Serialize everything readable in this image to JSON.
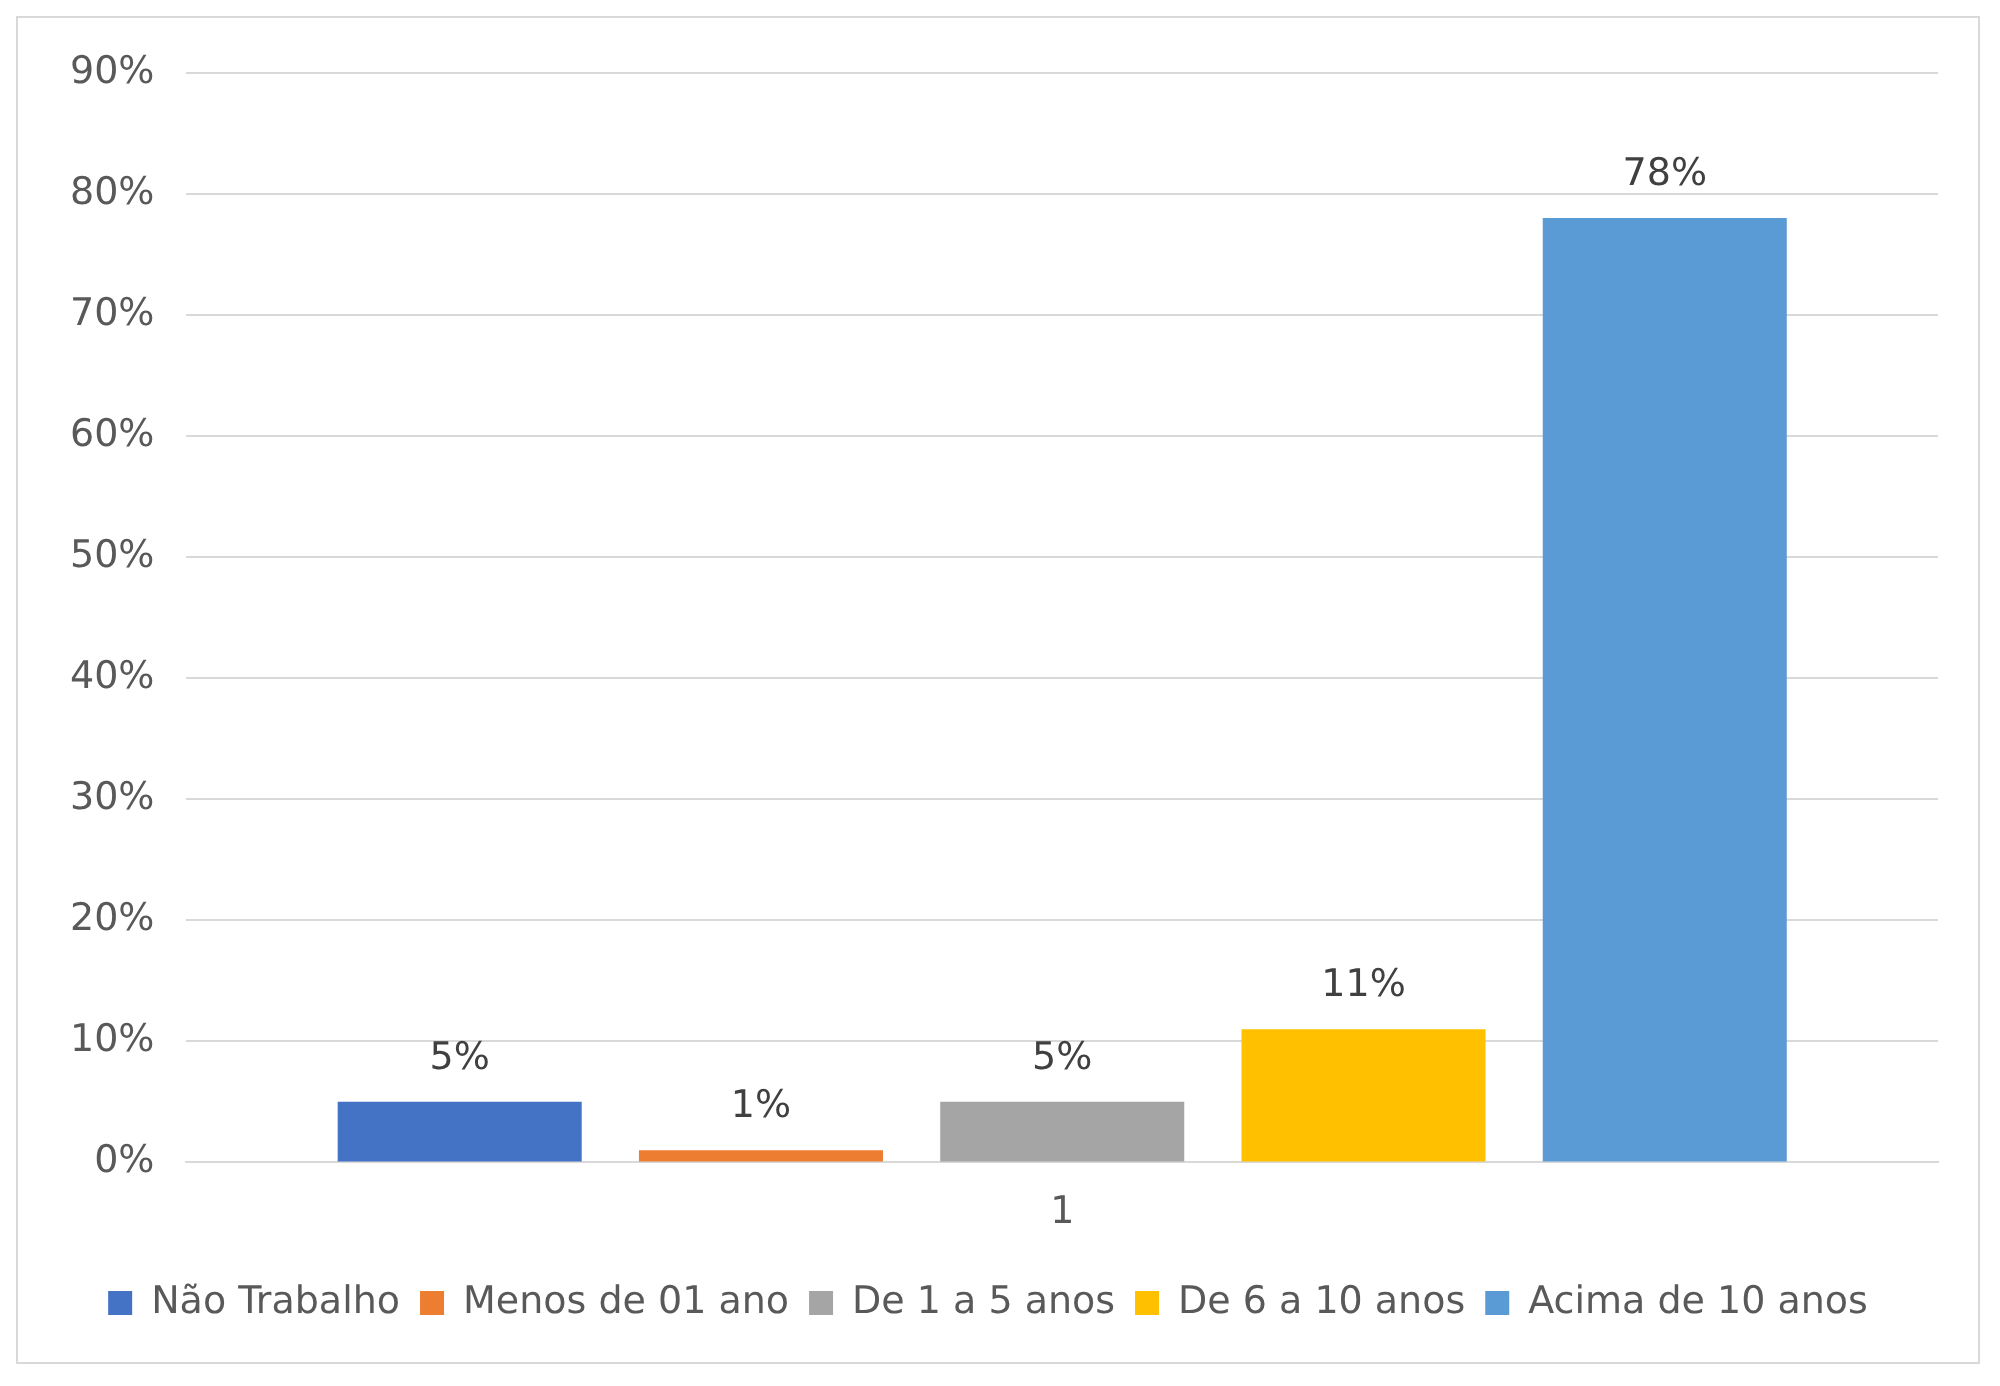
{
  "chart_data": {
    "type": "bar",
    "categories": [
      "1"
    ],
    "series": [
      {
        "name": "Não Trabalho",
        "color": "#4472c4",
        "values": [
          5
        ],
        "value_labels": [
          "5%"
        ]
      },
      {
        "name": "Menos de 01 ano",
        "color": "#ed7d31",
        "values": [
          1
        ],
        "value_labels": [
          "1%"
        ]
      },
      {
        "name": "De 1 a 5 anos",
        "color": "#a5a5a5",
        "values": [
          5
        ],
        "value_labels": [
          "5%"
        ]
      },
      {
        "name": "De 6 a 10 anos",
        "color": "#ffc000",
        "values": [
          11
        ],
        "value_labels": [
          "11%"
        ]
      },
      {
        "name": "Acima de 10 anos",
        "color": "#5b9bd5",
        "values": [
          78
        ],
        "value_labels": [
          "78%"
        ]
      }
    ],
    "ylim": [
      0,
      90
    ],
    "yticks": [
      {
        "value": 0,
        "label": "0%"
      },
      {
        "value": 10,
        "label": "10%"
      },
      {
        "value": 20,
        "label": "20%"
      },
      {
        "value": 30,
        "label": "30%"
      },
      {
        "value": 40,
        "label": "40%"
      },
      {
        "value": 50,
        "label": "50%"
      },
      {
        "value": 60,
        "label": "60%"
      },
      {
        "value": 70,
        "label": "70%"
      },
      {
        "value": 80,
        "label": "80%"
      },
      {
        "value": 90,
        "label": "90%"
      }
    ],
    "grid": "y",
    "legend": "bottom"
  }
}
